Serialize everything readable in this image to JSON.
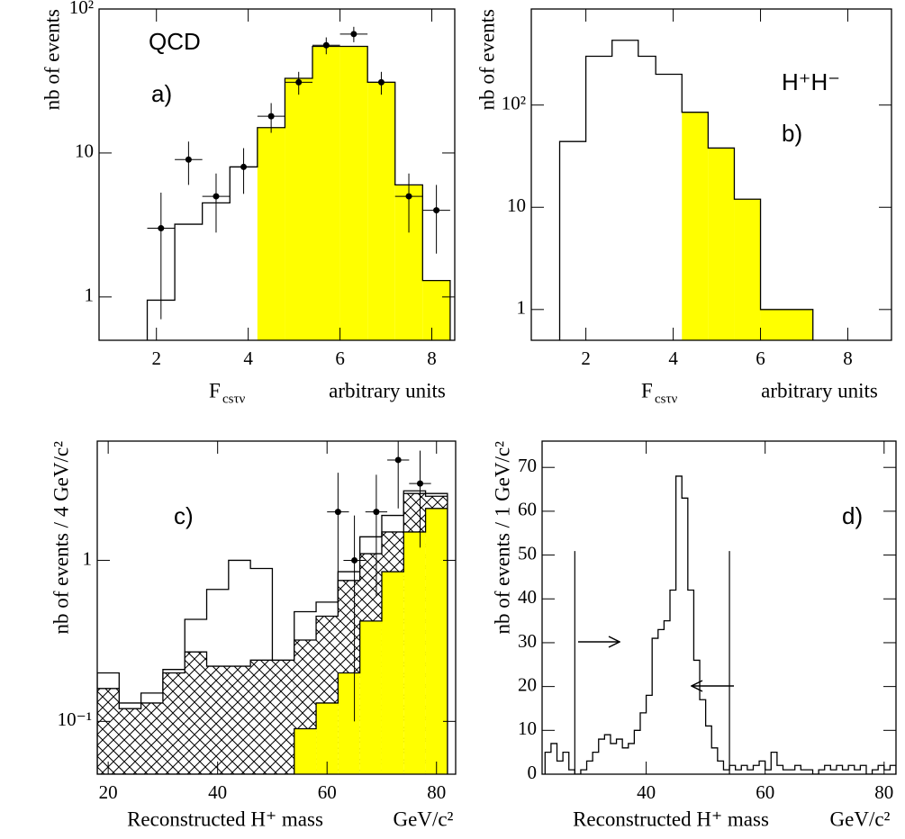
{
  "chart_data": [
    {
      "type": "histogram",
      "x_label": "F",
      "x_label_sub": "csτν",
      "x_unit": "arbitrary units",
      "y_label": "nb of events",
      "log_y": true,
      "xlim": [
        0.75,
        8.5
      ],
      "ylim": [
        0.5,
        100
      ],
      "xticks": [
        2,
        4,
        6,
        8
      ],
      "yticks": [
        1,
        10,
        {
          "value": 100,
          "label": "10²"
        }
      ],
      "bins": [
        1.8,
        2.4,
        3.0,
        3.6,
        4.2,
        4.8,
        5.4,
        6.0,
        6.6,
        7.2,
        7.8,
        8.4
      ],
      "series": [
        {
          "color": "#000000",
          "fill": "#ffff00",
          "fill_from": 4.2,
          "values": [
            0.95,
            3.2,
            4.5,
            8,
            15,
            33,
            55,
            55,
            31,
            6,
            1.3
          ]
        }
      ],
      "points": {
        "x": [
          2.1,
          2.7,
          3.3,
          3.9,
          4.5,
          5.1,
          5.7,
          6.3,
          6.9,
          7.5,
          8.1
        ],
        "values": [
          3,
          9,
          5,
          8,
          18,
          31,
          56,
          67,
          31,
          5,
          4
        ],
        "errors": [
          2.3,
          3,
          2.2,
          2.8,
          4.2,
          5.6,
          7.5,
          8.2,
          5.6,
          2.2,
          2
        ],
        "xerr": 0.3
      },
      "annotations": [
        "QCD",
        "a)"
      ]
    },
    {
      "type": "histogram",
      "x_label": "F",
      "x_label_sub": "csτν",
      "x_unit": "arbitrary units",
      "y_label": "nb of events",
      "log_y": true,
      "xlim": [
        0.75,
        9
      ],
      "ylim": [
        0.5,
        870
      ],
      "xticks": [
        2,
        4,
        6,
        8
      ],
      "yticks": [
        1,
        10,
        {
          "value": 100,
          "label": "10²"
        }
      ],
      "bins": [
        1.4,
        2.0,
        2.6,
        3.2,
        3.6,
        4.2,
        4.8,
        5.4,
        6.0,
        7.2
      ],
      "series": [
        {
          "color": "#000000",
          "fill": "#ffff00",
          "fill_from": 4.2,
          "values": [
            44,
            300,
            430,
            300,
            200,
            85,
            38,
            12,
            1
          ]
        }
      ],
      "annotations": [
        "H⁺H⁻",
        "b)"
      ]
    },
    {
      "type": "histogram",
      "x_label": "Reconstructed H⁺ mass",
      "x_unit": "GeV/c²",
      "y_label": "nb of events / 4 GeV/c²",
      "log_y": true,
      "xlim": [
        18,
        83.5
      ],
      "ylim": [
        0.047,
        5.5
      ],
      "xticks": [
        20,
        40,
        60,
        80
      ],
      "yticks": [
        {
          "value": 0.1,
          "label": "10⁻¹"
        },
        1
      ],
      "bins": [
        18,
        22,
        26,
        30,
        34,
        38,
        42,
        46,
        50,
        54,
        58,
        62,
        66,
        70,
        74,
        78,
        82
      ],
      "series": [
        {
          "color": "#000000",
          "values": [
            0.2,
            0.13,
            0.15,
            0.21,
            0.43,
            0.66,
            1.0,
            0.89,
            0.14,
            0.48,
            0.55,
            0.85,
            1.4,
            1.9,
            2.7,
            2.6
          ]
        },
        {
          "color": "#000000",
          "pattern": "crosshatch",
          "values": [
            0.16,
            0.12,
            0.13,
            0.2,
            0.27,
            0.22,
            0.22,
            0.24,
            0.24,
            0.32,
            0.45,
            0.75,
            1.1,
            1.5,
            2.6,
            2.5
          ]
        },
        {
          "color": "#000000",
          "fill": "#ffff00",
          "values": [
            null,
            null,
            null,
            null,
            null,
            null,
            null,
            null,
            null,
            0.09,
            0.13,
            0.2,
            0.42,
            0.85,
            1.5,
            2.1
          ]
        }
      ],
      "points": {
        "x": [
          62,
          65,
          69,
          73,
          77
        ],
        "values": [
          2.0,
          1.0,
          2.0,
          4.2,
          3.0
        ],
        "errors": [
          1.5,
          0.9,
          1.4,
          2.1,
          1.8
        ],
        "xerr": 2
      },
      "annotations": [
        "c)"
      ]
    },
    {
      "type": "histogram",
      "x_label": "Reconstructed H⁺ mass",
      "x_unit": "GeV/c²",
      "y_label": "nb of events / 1 GeV/c²",
      "log_y": false,
      "xlim": [
        22.5,
        82
      ],
      "ylim": [
        0,
        76
      ],
      "xticks": [
        40,
        60,
        80
      ],
      "yticks": [
        0,
        10,
        20,
        30,
        40,
        50,
        60,
        70
      ],
      "bins": [
        23,
        24,
        25,
        26,
        27,
        28,
        29,
        30,
        31,
        32,
        33,
        34,
        35,
        36,
        37,
        38,
        39,
        40,
        41,
        42,
        43,
        44,
        45,
        46,
        47,
        48,
        49,
        50,
        51,
        52,
        53,
        54,
        55,
        56,
        57,
        58,
        59,
        60,
        61,
        62,
        63,
        64,
        65,
        66,
        67,
        68,
        69,
        70,
        71,
        72,
        73,
        74,
        75,
        76,
        77,
        78,
        79,
        80,
        81,
        82
      ],
      "series": [
        {
          "color": "#000000",
          "values": [
            5,
            7,
            3,
            5,
            1,
            0,
            1,
            3,
            5,
            8,
            9,
            7,
            8,
            6,
            7,
            10,
            14,
            18,
            31,
            33,
            35,
            42,
            68,
            63,
            42,
            26,
            17,
            11,
            6,
            3,
            1,
            2,
            1,
            2,
            1,
            2,
            3,
            1,
            5,
            2,
            1,
            1,
            2,
            1,
            1,
            0,
            1,
            2,
            1,
            2,
            1,
            2,
            1,
            2,
            0,
            1,
            2,
            1,
            2
          ]
        }
      ],
      "cuts": [
        28,
        54
      ],
      "annotations": [
        "d)"
      ]
    }
  ]
}
